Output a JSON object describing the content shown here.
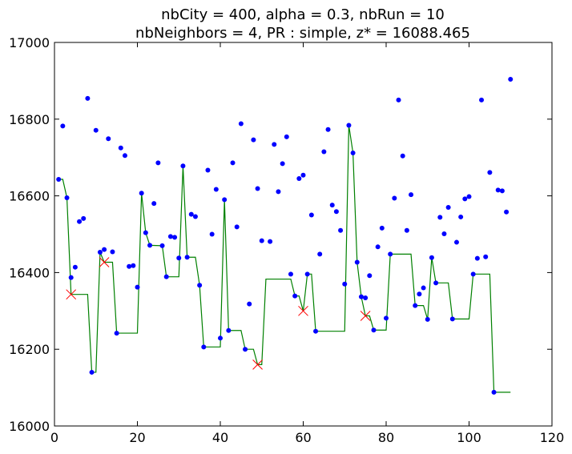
{
  "chart_data": {
    "type": "scatter",
    "title_line1": "nbCity = 400, alpha = 0.3, nbRun = 10",
    "title_line2": "nbNeighbors = 4, PR : simple, z* = 16088.465",
    "xlabel": "",
    "ylabel": "",
    "xlim": [
      0,
      120
    ],
    "ylim": [
      16000,
      17000
    ],
    "x_ticks": [
      0,
      20,
      40,
      60,
      80,
      100,
      120
    ],
    "y_ticks": [
      16000,
      16200,
      16400,
      16600,
      16800,
      17000
    ],
    "grid": false,
    "colors": {
      "points": "#0000ff",
      "line": "#008000",
      "markers": "#ff0000"
    },
    "points": [
      [
        1,
        16643
      ],
      [
        2,
        16782
      ],
      [
        3,
        16595
      ],
      [
        4,
        16387
      ],
      [
        5,
        16414
      ],
      [
        6,
        16533
      ],
      [
        7,
        16541
      ],
      [
        8,
        16854
      ],
      [
        9,
        16140
      ],
      [
        10,
        16771
      ],
      [
        11,
        16453
      ],
      [
        12,
        16460
      ],
      [
        13,
        16749
      ],
      [
        14,
        16454
      ],
      [
        15,
        16242
      ],
      [
        16,
        16725
      ],
      [
        17,
        16705
      ],
      [
        18,
        16416
      ],
      [
        19,
        16418
      ],
      [
        20,
        16362
      ],
      [
        21,
        16607
      ],
      [
        22,
        16504
      ],
      [
        23,
        16471
      ],
      [
        24,
        16580
      ],
      [
        25,
        16686
      ],
      [
        26,
        16470
      ],
      [
        27,
        16389
      ],
      [
        28,
        16494
      ],
      [
        29,
        16492
      ],
      [
        30,
        16438
      ],
      [
        31,
        16678
      ],
      [
        32,
        16440
      ],
      [
        33,
        16552
      ],
      [
        34,
        16546
      ],
      [
        35,
        16367
      ],
      [
        36,
        16206
      ],
      [
        37,
        16667
      ],
      [
        38,
        16500
      ],
      [
        39,
        16617
      ],
      [
        40,
        16229
      ],
      [
        41,
        16590
      ],
      [
        42,
        16249
      ],
      [
        43,
        16686
      ],
      [
        44,
        16519
      ],
      [
        45,
        16788
      ],
      [
        46,
        16200
      ],
      [
        47,
        16318
      ],
      [
        48,
        16746
      ],
      [
        49,
        16619
      ],
      [
        50,
        16483
      ],
      [
        52,
        16481
      ],
      [
        53,
        16734
      ],
      [
        54,
        16611
      ],
      [
        55,
        16684
      ],
      [
        56,
        16754
      ],
      [
        57,
        16396
      ],
      [
        58,
        16339
      ],
      [
        59,
        16645
      ],
      [
        60,
        16654
      ],
      [
        61,
        16396
      ],
      [
        62,
        16550
      ],
      [
        63,
        16247
      ],
      [
        64,
        16448
      ],
      [
        65,
        16715
      ],
      [
        66,
        16773
      ],
      [
        67,
        16576
      ],
      [
        68,
        16559
      ],
      [
        69,
        16510
      ],
      [
        70,
        16370
      ],
      [
        71,
        16784
      ],
      [
        72,
        16712
      ],
      [
        73,
        16427
      ],
      [
        74,
        16337
      ],
      [
        75,
        16334
      ],
      [
        76,
        16392
      ],
      [
        77,
        16250
      ],
      [
        78,
        16467
      ],
      [
        79,
        16516
      ],
      [
        80,
        16281
      ],
      [
        81,
        16448
      ],
      [
        82,
        16594
      ],
      [
        83,
        16850
      ],
      [
        84,
        16704
      ],
      [
        85,
        16510
      ],
      [
        86,
        16603
      ],
      [
        87,
        16314
      ],
      [
        88,
        16344
      ],
      [
        89,
        16360
      ],
      [
        90,
        16278
      ],
      [
        91,
        16439
      ],
      [
        92,
        16373
      ],
      [
        93,
        16544
      ],
      [
        94,
        16501
      ],
      [
        95,
        16570
      ],
      [
        96,
        16279
      ],
      [
        97,
        16479
      ],
      [
        98,
        16545
      ],
      [
        99,
        16592
      ],
      [
        100,
        16598
      ],
      [
        101,
        16396
      ],
      [
        102,
        16437
      ],
      [
        103,
        16850
      ],
      [
        104,
        16441
      ],
      [
        105,
        16661
      ],
      [
        106,
        16088
      ],
      [
        107,
        16615
      ],
      [
        108,
        16613
      ],
      [
        109,
        16558
      ],
      [
        110,
        16904
      ]
    ],
    "line": [
      [
        1,
        16643
      ],
      [
        2,
        16643
      ],
      [
        3,
        16595
      ],
      [
        4,
        16343
      ],
      [
        8,
        16343
      ],
      [
        9,
        16140
      ],
      [
        10,
        16140
      ],
      [
        11,
        16453
      ],
      [
        12,
        16427
      ],
      [
        14,
        16427
      ],
      [
        15,
        16242
      ],
      [
        20,
        16242
      ],
      [
        21,
        16607
      ],
      [
        22,
        16504
      ],
      [
        23,
        16471
      ],
      [
        26,
        16470
      ],
      [
        27,
        16389
      ],
      [
        30,
        16389
      ],
      [
        31,
        16678
      ],
      [
        32,
        16440
      ],
      [
        34,
        16440
      ],
      [
        35,
        16367
      ],
      [
        36,
        16206
      ],
      [
        40,
        16206
      ],
      [
        41,
        16590
      ],
      [
        42,
        16249
      ],
      [
        45,
        16249
      ],
      [
        46,
        16200
      ],
      [
        48,
        16200
      ],
      [
        49,
        16160
      ],
      [
        50,
        16160
      ],
      [
        51,
        16383
      ],
      [
        57,
        16383
      ],
      [
        58,
        16339
      ],
      [
        59,
        16339
      ],
      [
        60,
        16300
      ],
      [
        61,
        16396
      ],
      [
        62,
        16396
      ],
      [
        63,
        16247
      ],
      [
        70,
        16247
      ],
      [
        71,
        16784
      ],
      [
        72,
        16712
      ],
      [
        73,
        16427
      ],
      [
        74,
        16337
      ],
      [
        75,
        16287
      ],
      [
        76,
        16287
      ],
      [
        77,
        16250
      ],
      [
        80,
        16250
      ],
      [
        81,
        16448
      ],
      [
        86,
        16448
      ],
      [
        87,
        16314
      ],
      [
        89,
        16314
      ],
      [
        90,
        16278
      ],
      [
        91,
        16439
      ],
      [
        92,
        16373
      ],
      [
        95,
        16373
      ],
      [
        96,
        16279
      ],
      [
        100,
        16279
      ],
      [
        101,
        16396
      ],
      [
        105,
        16396
      ],
      [
        106,
        16088
      ],
      [
        110,
        16088
      ]
    ],
    "markers": [
      [
        4,
        16343
      ],
      [
        12,
        16427
      ],
      [
        49,
        16160
      ],
      [
        60,
        16300
      ],
      [
        75,
        16287
      ]
    ]
  }
}
